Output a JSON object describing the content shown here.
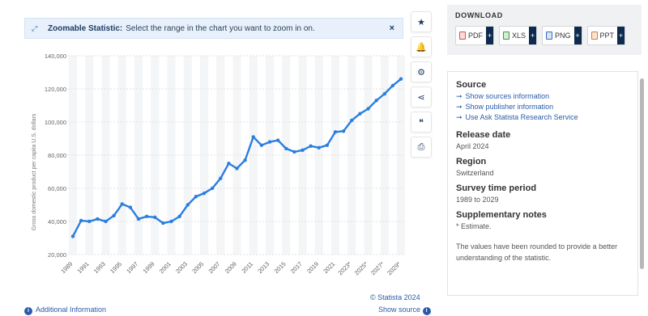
{
  "banner": {
    "title": "Zoomable Statistic:",
    "text": "Select the range in the chart you want to zoom in on.",
    "close": "×"
  },
  "toolbar": [
    {
      "icon": "star-icon",
      "glyph": "★"
    },
    {
      "icon": "bell-icon",
      "glyph": "🔔"
    },
    {
      "icon": "gear-icon",
      "glyph": "⚙"
    },
    {
      "icon": "share-icon",
      "glyph": "⋖"
    },
    {
      "icon": "quote-icon",
      "glyph": "❝"
    },
    {
      "icon": "print-icon",
      "glyph": "⎙"
    }
  ],
  "footer": {
    "credit": "© Statista 2024",
    "additional": "Additional Information",
    "source": "Show source"
  },
  "download": {
    "title": "DOWNLOAD",
    "buttons": [
      {
        "label": "PDF",
        "color": "#d9534f"
      },
      {
        "label": "XLS",
        "color": "#3c9a3c"
      },
      {
        "label": "PNG",
        "color": "#3a6fb5"
      },
      {
        "label": "PPT",
        "color": "#e07b2a"
      }
    ]
  },
  "info": {
    "source_title": "Source",
    "links": [
      "Show sources information",
      "Show publisher information",
      "Use Ask Statista Research Service"
    ],
    "release_title": "Release date",
    "release_value": "April 2024",
    "region_title": "Region",
    "region_value": "Switzerland",
    "period_title": "Survey time period",
    "period_value": "1989 to 2029",
    "notes_title": "Supplementary notes",
    "notes_value": "* Estimate.",
    "rounding_note": "The values have been rounded to provide a better understanding of the statistic."
  },
  "chart_data": {
    "type": "line",
    "ylabel": "Gross domestic product per capita U.S. dollars",
    "ylim": [
      20000,
      140000
    ],
    "yticks": [
      20000,
      40000,
      60000,
      80000,
      100000,
      120000,
      140000
    ],
    "ytick_labels": [
      "20,000",
      "40,000",
      "60,000",
      "80,000",
      "100,000",
      "120,000",
      "140,000"
    ],
    "x": [
      "1989",
      "1990",
      "1991",
      "1992",
      "1993",
      "1994",
      "1995",
      "1996",
      "1997",
      "1998",
      "1999",
      "2000",
      "2001",
      "2002",
      "2003",
      "2004",
      "2005",
      "2006",
      "2007",
      "2008",
      "2009",
      "2010",
      "2011",
      "2012",
      "2013",
      "2014",
      "2015",
      "2016",
      "2017",
      "2018",
      "2019",
      "2020",
      "2021",
      "2022",
      "2023*",
      "2024*",
      "2025*",
      "2026*",
      "2027*",
      "2028*",
      "2029*"
    ],
    "xtick_labels": [
      "1989",
      "1991",
      "1993",
      "1995",
      "1997",
      "1999",
      "2001",
      "2003",
      "2005",
      "2007",
      "2009",
      "2011",
      "2013",
      "2015",
      "2017",
      "2019",
      "2021",
      "2023*",
      "2025*",
      "2027*",
      "2029*"
    ],
    "values": [
      31000,
      40500,
      40000,
      41500,
      40000,
      43500,
      50500,
      48500,
      41500,
      43000,
      42500,
      39000,
      40000,
      43000,
      50000,
      55000,
      57000,
      60000,
      66000,
      75000,
      72000,
      77000,
      91000,
      86000,
      88000,
      89000,
      84000,
      82000,
      83000,
      85500,
      84500,
      86000,
      94000,
      94500,
      101000,
      105000,
      108000,
      113000,
      117000,
      122000,
      126000
    ],
    "color": "#2a7ee0",
    "grid": true
  }
}
